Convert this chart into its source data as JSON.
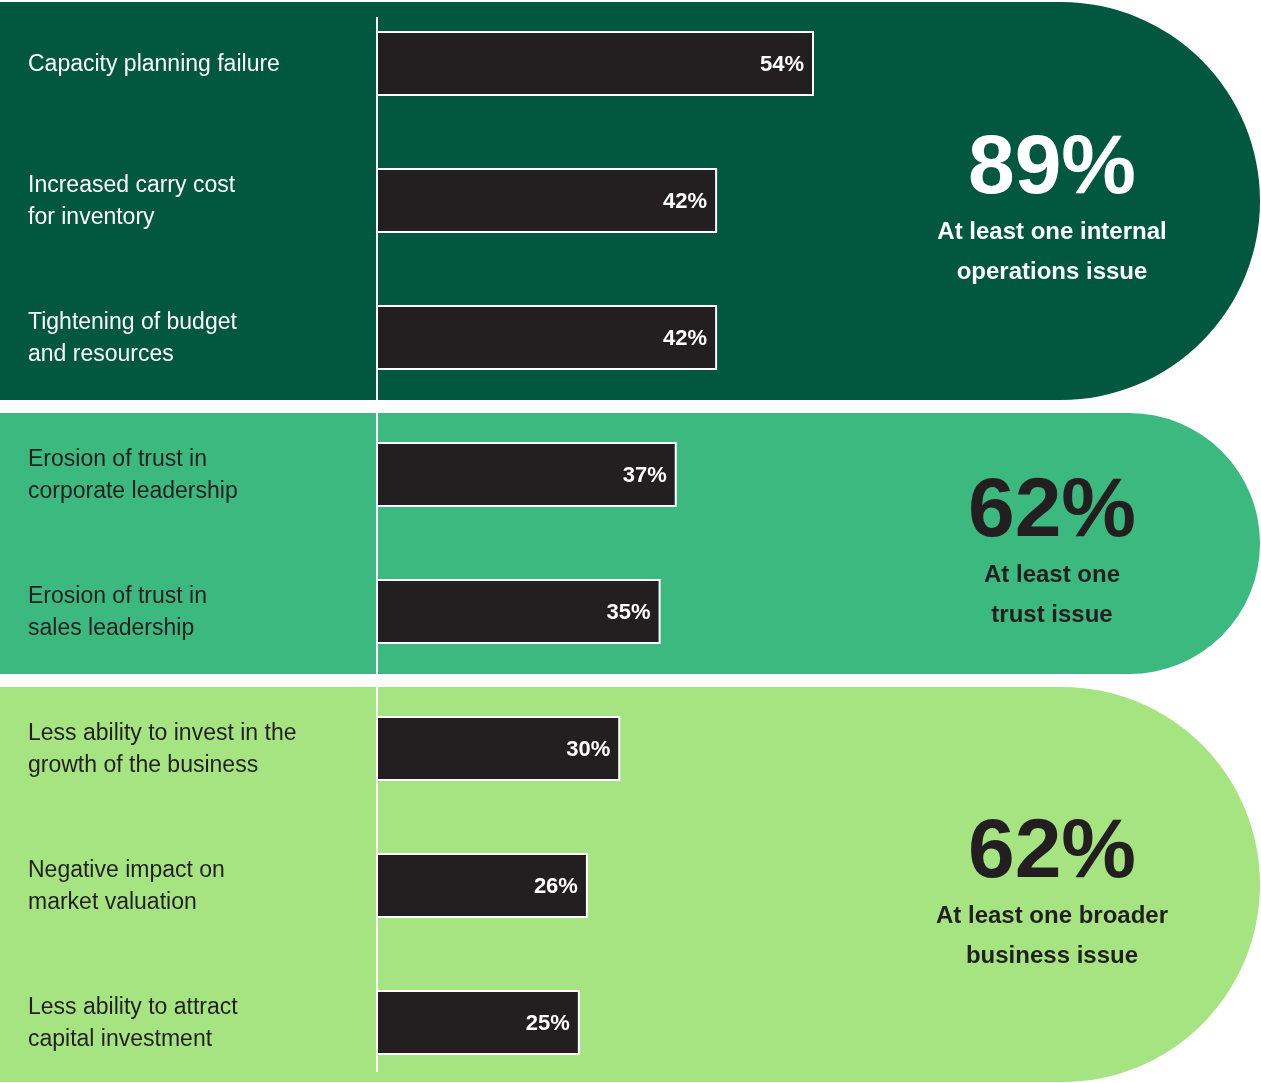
{
  "chart_data": {
    "type": "bar",
    "orientation": "horizontal",
    "categories": [
      "Capacity planning failure",
      "Increased carry cost\nfor inventory",
      "Tightening of budget\nand resources",
      "Erosion of trust in\ncorporate leadership",
      "Erosion of trust in\nsales leadership",
      "Less ability to invest in the\ngrowth of the business",
      "Negative impact on\nmarket valuation",
      "Less ability to attract\ncapital investment"
    ],
    "values": [
      54,
      42,
      42,
      37,
      35,
      30,
      26,
      25
    ],
    "color": "#231f20",
    "data_labels": true,
    "value_labels": [
      "54%",
      "42%",
      "42%",
      "37%",
      "35%",
      "30%",
      "26%",
      "25%"
    ],
    "bands": [
      {
        "axis": "y",
        "from": "Capacity planning failure",
        "to": "Tightening of budget\nand resources",
        "color": "#02573f"
      },
      {
        "axis": "y",
        "from": "Erosion of trust in\ncorporate leadership",
        "to": "Erosion of trust in\nsales leadership",
        "color": "#3bb97f"
      },
      {
        "axis": "y",
        "from": "Less ability to invest in the\ngrowth of the business",
        "to": "Less ability to attract\ncapital investment",
        "color": "#a6e482"
      }
    ],
    "annotations": [
      "89%",
      "At least one internal\noperations issue",
      "62%",
      "At least one\ntrust issue",
      "62%",
      "At least one broader\nbusiness issue"
    ]
  }
}
